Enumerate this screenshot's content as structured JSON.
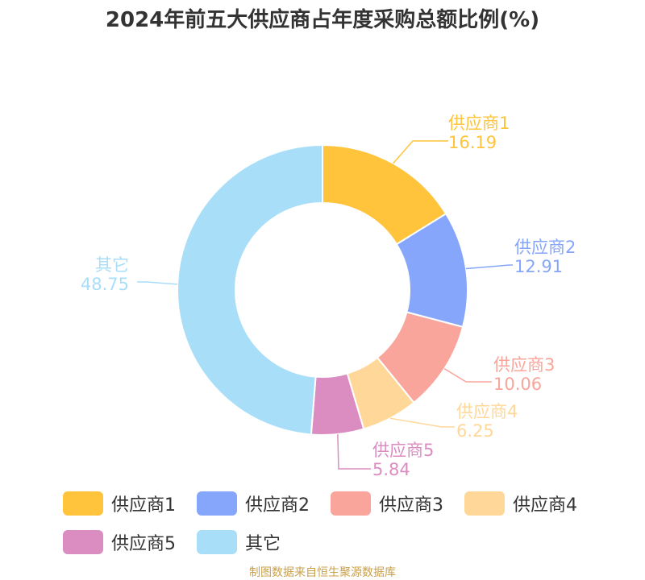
{
  "chart_data": {
    "type": "pie",
    "title": "2024年前五大供应商占年度采购总额比例(%)",
    "categories": [
      "供应商1",
      "供应商2",
      "供应商3",
      "供应商4",
      "供应商5",
      "其它"
    ],
    "values": [
      16.19,
      12.91,
      10.06,
      6.25,
      5.84,
      48.75
    ],
    "value_labels": [
      "16.19",
      "12.91",
      "10.06",
      "6.25",
      "5.84",
      "48.75"
    ],
    "colors": [
      "#ffc43c",
      "#86a6fb",
      "#f9a59b",
      "#ffd899",
      "#db8dc1",
      "#a9def9"
    ],
    "donut": true,
    "legend_position": "bottom"
  },
  "footer": {
    "source": "制图数据来自恒生聚源数据库"
  }
}
